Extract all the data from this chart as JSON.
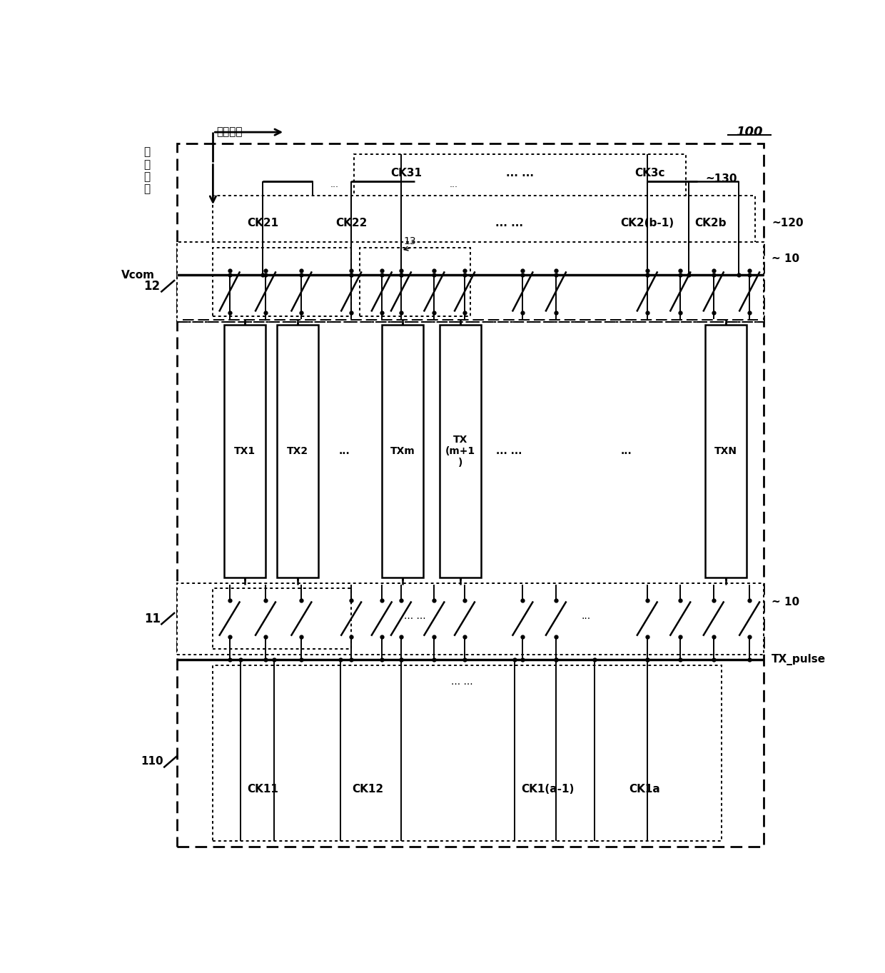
{
  "bg_color": "#ffffff",
  "fig_width": 12.4,
  "fig_height": 13.63,
  "label_first_dir": "第一方向",
  "label_second_dir": "第\n二\n方\n向",
  "label_vcom": "Vcom",
  "label_tx_pulse": "TX_pulse",
  "label_100": "100",
  "label_130": "~130",
  "label_120": "~120",
  "label_10a": "~ 10",
  "label_10b": "~ 10",
  "label_12": "12",
  "label_13": "13",
  "label_11": "11",
  "label_110": "110",
  "tx_labels": [
    "TX1",
    "TX2",
    "...",
    "TXm",
    "TX\n(m+1\n)",
    "... ...",
    "TXN"
  ],
  "ck2_labels": [
    "CK21",
    "CK22",
    "... ...",
    "CK2(b-1)",
    "CK2b"
  ],
  "ck3_labels": [
    "CK31",
    "... ...",
    "CK3c"
  ],
  "ck1_labels": [
    "CK11",
    "CK12",
    "CK1(a-1)",
    "CK1a"
  ]
}
